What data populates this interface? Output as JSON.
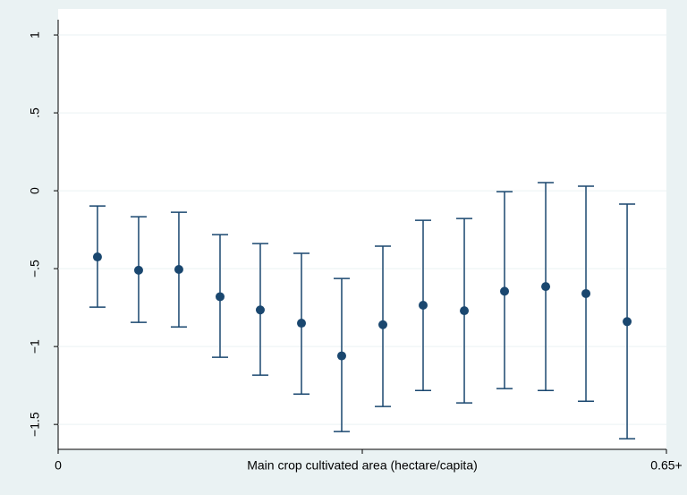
{
  "chart_data": {
    "type": "errorbar",
    "color": "#1a476f",
    "x": [
      0.042,
      0.086,
      0.129,
      0.173,
      0.216,
      0.26,
      0.303,
      0.347,
      0.39,
      0.434,
      0.477,
      0.521,
      0.564,
      0.608
    ],
    "values": [
      -0.425,
      -0.51,
      -0.505,
      -0.68,
      -0.765,
      -0.85,
      -1.06,
      -0.86,
      -0.735,
      -0.77,
      -0.645,
      -0.615,
      -0.66,
      -0.84
    ],
    "upper": [
      -0.098,
      -0.167,
      -0.138,
      -0.282,
      -0.339,
      -0.402,
      -0.563,
      -0.356,
      -0.19,
      -0.178,
      -0.006,
      0.052,
      0.029,
      -0.086
    ],
    "lower": [
      -0.747,
      -0.845,
      -0.874,
      -1.069,
      -1.184,
      -1.305,
      -1.546,
      -1.385,
      -1.282,
      -1.362,
      -1.27,
      -1.282,
      -1.351,
      -1.592
    ],
    "xlim": [
      0,
      0.65
    ],
    "xticks": [
      0,
      {
        "value": 0.325,
        "label": "Main crop cultivated area (hectare/capita)"
      },
      {
        "value": 0.65,
        "label": "0.65+"
      }
    ],
    "ylim": [
      -1.66,
      1.098
    ],
    "yticks": [
      {
        "value": -1.5,
        "label": "−1.5"
      },
      {
        "value": -1,
        "label": "−1"
      },
      {
        "value": -0.5,
        "label": "−.5"
      },
      0,
      {
        "value": 0.5,
        "label": ".5"
      },
      1
    ],
    "grid": true
  }
}
